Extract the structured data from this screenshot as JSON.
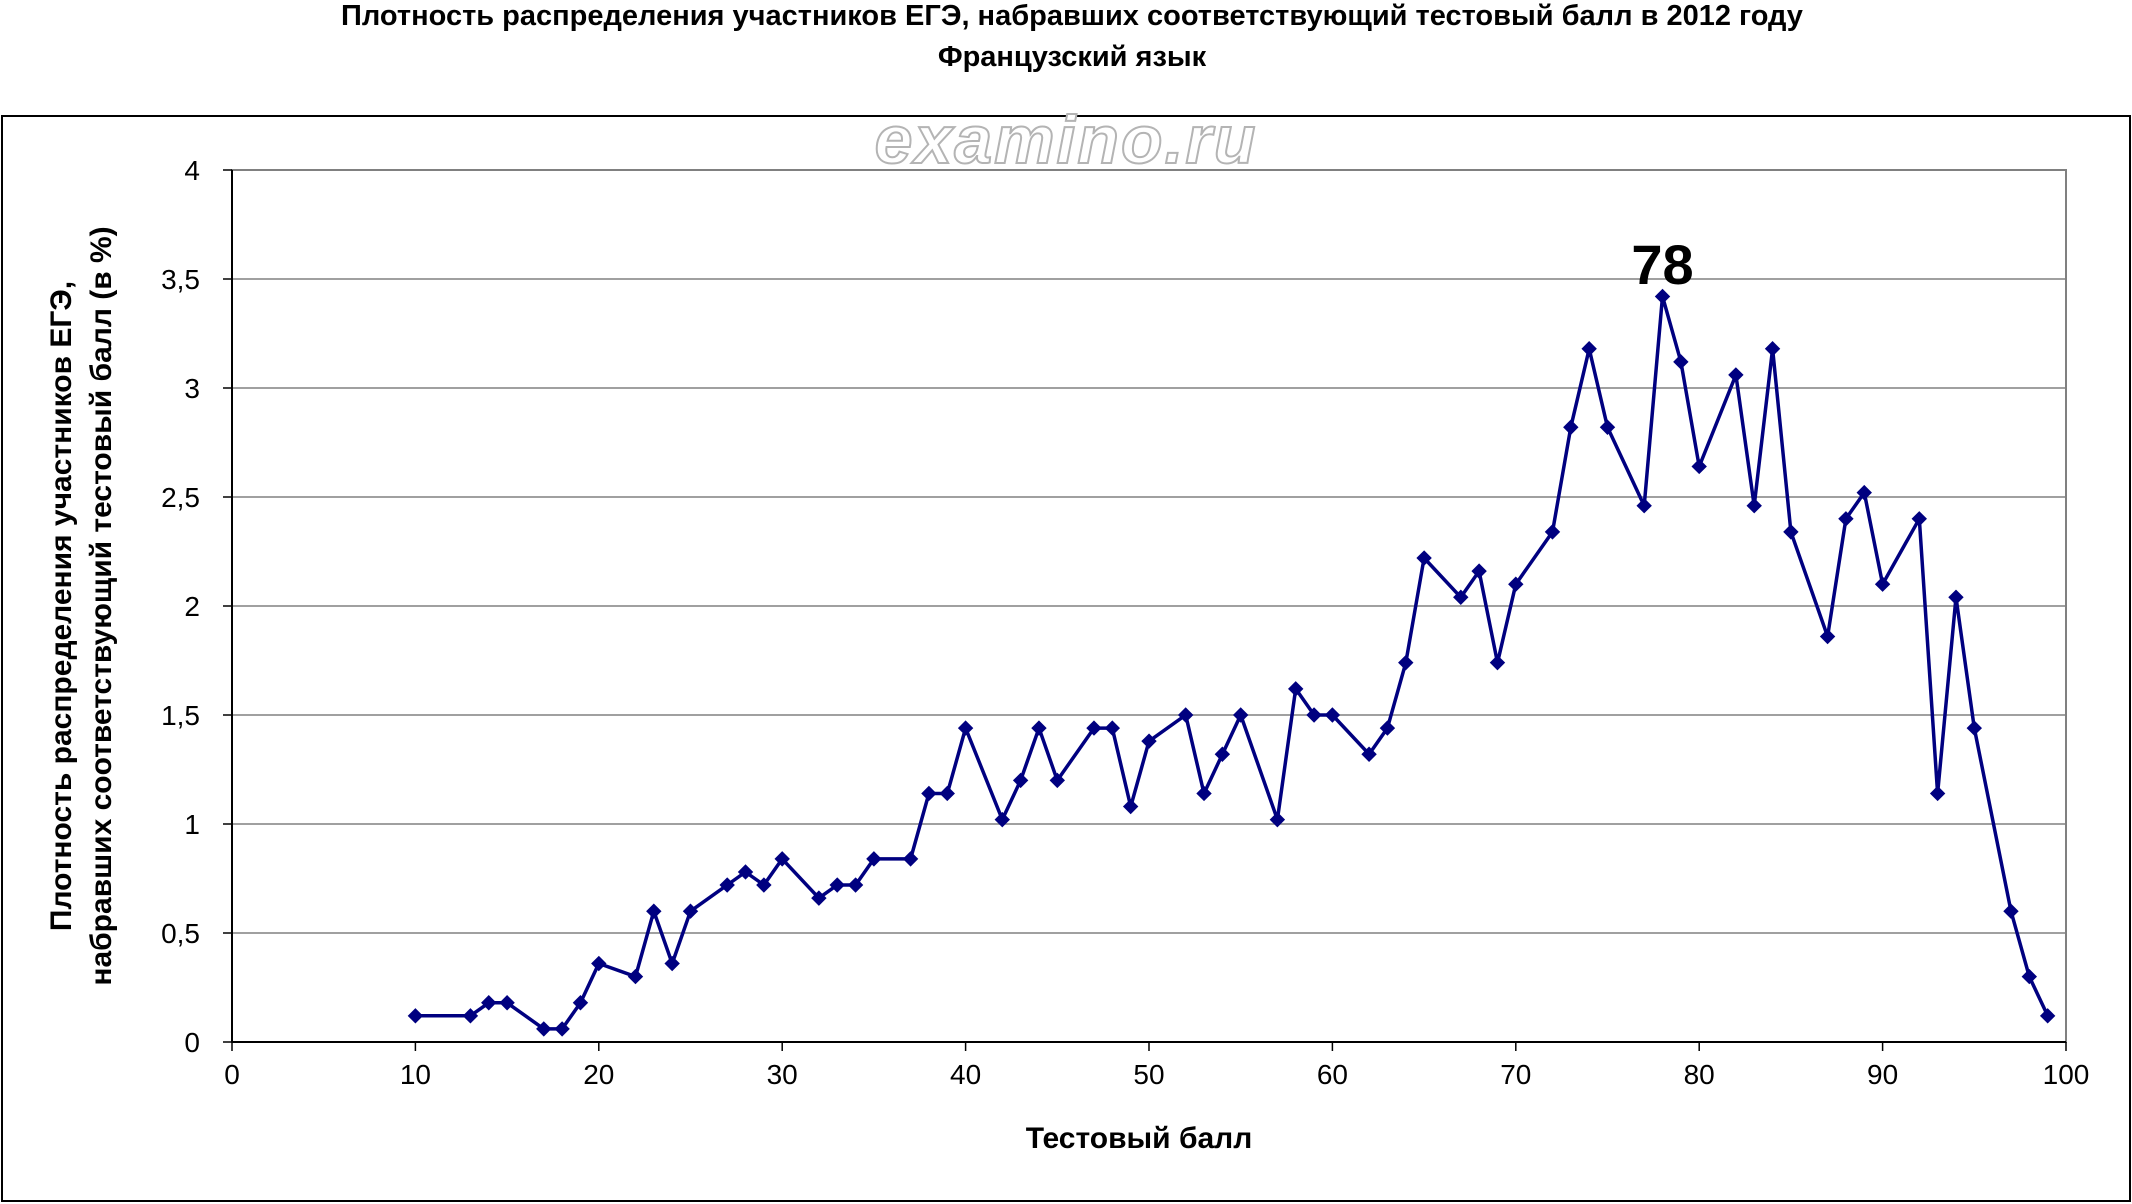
{
  "watermark": "examino.ru",
  "chart_data": {
    "type": "line",
    "title": "Плотность распределения участников ЕГЭ, набравших соответствующий тестовый балл в 2012 году",
    "subtitle": "Французский язык",
    "xlabel": "Тестовый балл",
    "ylabel_line1": "Плотность распределения участников ЕГЭ,",
    "ylabel_line2": "набравших соответствующий тестовый балл (в %)",
    "xlim": [
      0,
      100
    ],
    "ylim": [
      0,
      4
    ],
    "x_ticks": [
      "0",
      "10",
      "20",
      "30",
      "40",
      "50",
      "60",
      "70",
      "80",
      "90",
      "100"
    ],
    "y_ticks": [
      "0",
      "0,5",
      "1",
      "1,5",
      "2",
      "2,5",
      "3",
      "3,5",
      "4"
    ],
    "grid": true,
    "line_color": "#000080",
    "annotation": {
      "text": "78",
      "x": 78,
      "y": 3.4
    },
    "x": [
      10,
      13,
      14,
      15,
      17,
      18,
      19,
      20,
      22,
      23,
      24,
      25,
      27,
      28,
      29,
      30,
      32,
      33,
      34,
      35,
      37,
      38,
      39,
      40,
      42,
      43,
      44,
      45,
      47,
      48,
      49,
      50,
      52,
      53,
      54,
      55,
      57,
      58,
      59,
      60,
      62,
      63,
      64,
      65,
      67,
      68,
      69,
      70,
      72,
      73,
      74,
      75,
      77,
      78,
      79,
      80,
      82,
      83,
      84,
      85,
      87,
      88,
      89,
      90,
      92,
      93,
      94,
      95,
      97,
      98,
      99
    ],
    "y": [
      0.12,
      0.12,
      0.18,
      0.18,
      0.06,
      0.06,
      0.18,
      0.36,
      0.3,
      0.6,
      0.36,
      0.6,
      0.72,
      0.78,
      0.72,
      0.84,
      0.66,
      0.72,
      0.72,
      0.84,
      0.84,
      1.14,
      1.14,
      1.44,
      1.02,
      1.2,
      1.44,
      1.2,
      1.44,
      1.44,
      1.08,
      1.38,
      1.5,
      1.14,
      1.32,
      1.5,
      1.02,
      1.62,
      1.5,
      1.5,
      1.32,
      1.44,
      1.74,
      2.22,
      2.04,
      2.16,
      1.74,
      2.1,
      2.34,
      2.82,
      3.18,
      2.82,
      2.46,
      3.42,
      3.12,
      2.64,
      3.06,
      2.46,
      3.18,
      2.34,
      1.86,
      2.4,
      2.52,
      2.1,
      2.4,
      1.14,
      2.04,
      1.44,
      0.6,
      0.3,
      0.12
    ]
  }
}
